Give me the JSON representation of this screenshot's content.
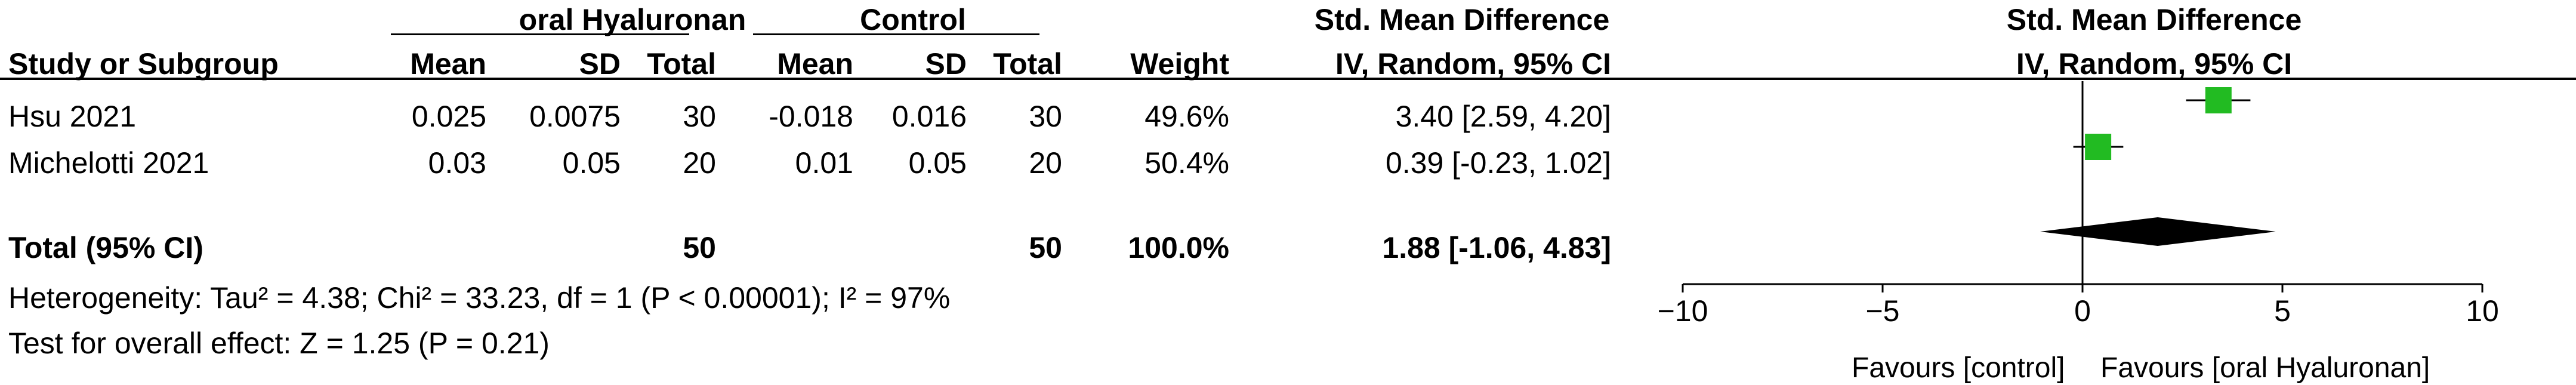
{
  "headers": {
    "group_experimental": "oral Hyaluronan",
    "group_control": "Control",
    "effect_measure": "Std. Mean Difference",
    "plot_effect_measure": "Std. Mean Difference",
    "study_col": "Study or Subgroup",
    "mean": "Mean",
    "sd": "SD",
    "total": "Total",
    "weight": "Weight",
    "method": "IV, Random, 95% CI",
    "plot_method": "IV, Random, 95% CI"
  },
  "studies": [
    {
      "name": "Hsu 2021",
      "exp_mean": "0.025",
      "exp_sd": "0.0075",
      "exp_total": "30",
      "ctl_mean": "-0.018",
      "ctl_sd": "0.016",
      "ctl_total": "30",
      "weight": "49.6%",
      "ci_text": "3.40 [2.59, 4.20]"
    },
    {
      "name": "Michelotti 2021",
      "exp_mean": "0.03",
      "exp_sd": "0.05",
      "exp_total": "20",
      "ctl_mean": "0.01",
      "ctl_sd": "0.05",
      "ctl_total": "20",
      "weight": "50.4%",
      "ci_text": "0.39 [-0.23, 1.02]"
    }
  ],
  "total": {
    "label": "Total (95% CI)",
    "exp_total": "50",
    "ctl_total": "50",
    "weight": "100.0%",
    "ci_text": "1.88 [-1.06, 4.83]"
  },
  "heterogeneity": "Heterogeneity: Tau² = 4.38; Chi² = 33.23, df = 1 (P < 0.00001); I² = 97%",
  "overall_effect": "Test for overall effect: Z = 1.25 (P = 0.21)",
  "favours_left": "Favours [control]",
  "favours_right": "Favours [oral Hyaluronan]",
  "colors": {
    "study_marker": "#22bb22",
    "diamond": "#000000"
  },
  "chart_data": {
    "type": "forest",
    "xlim": [
      -10,
      10
    ],
    "ticks": [
      -10,
      -5,
      0,
      5,
      10
    ],
    "null_line": 0,
    "studies": [
      {
        "name": "Hsu 2021",
        "estimate": 3.4,
        "lower": 2.59,
        "upper": 4.2,
        "weight": 49.6
      },
      {
        "name": "Michelotti 2021",
        "estimate": 0.39,
        "lower": -0.23,
        "upper": 1.02,
        "weight": 50.4
      }
    ],
    "pooled": {
      "estimate": 1.88,
      "lower": -1.06,
      "upper": 4.83
    }
  }
}
